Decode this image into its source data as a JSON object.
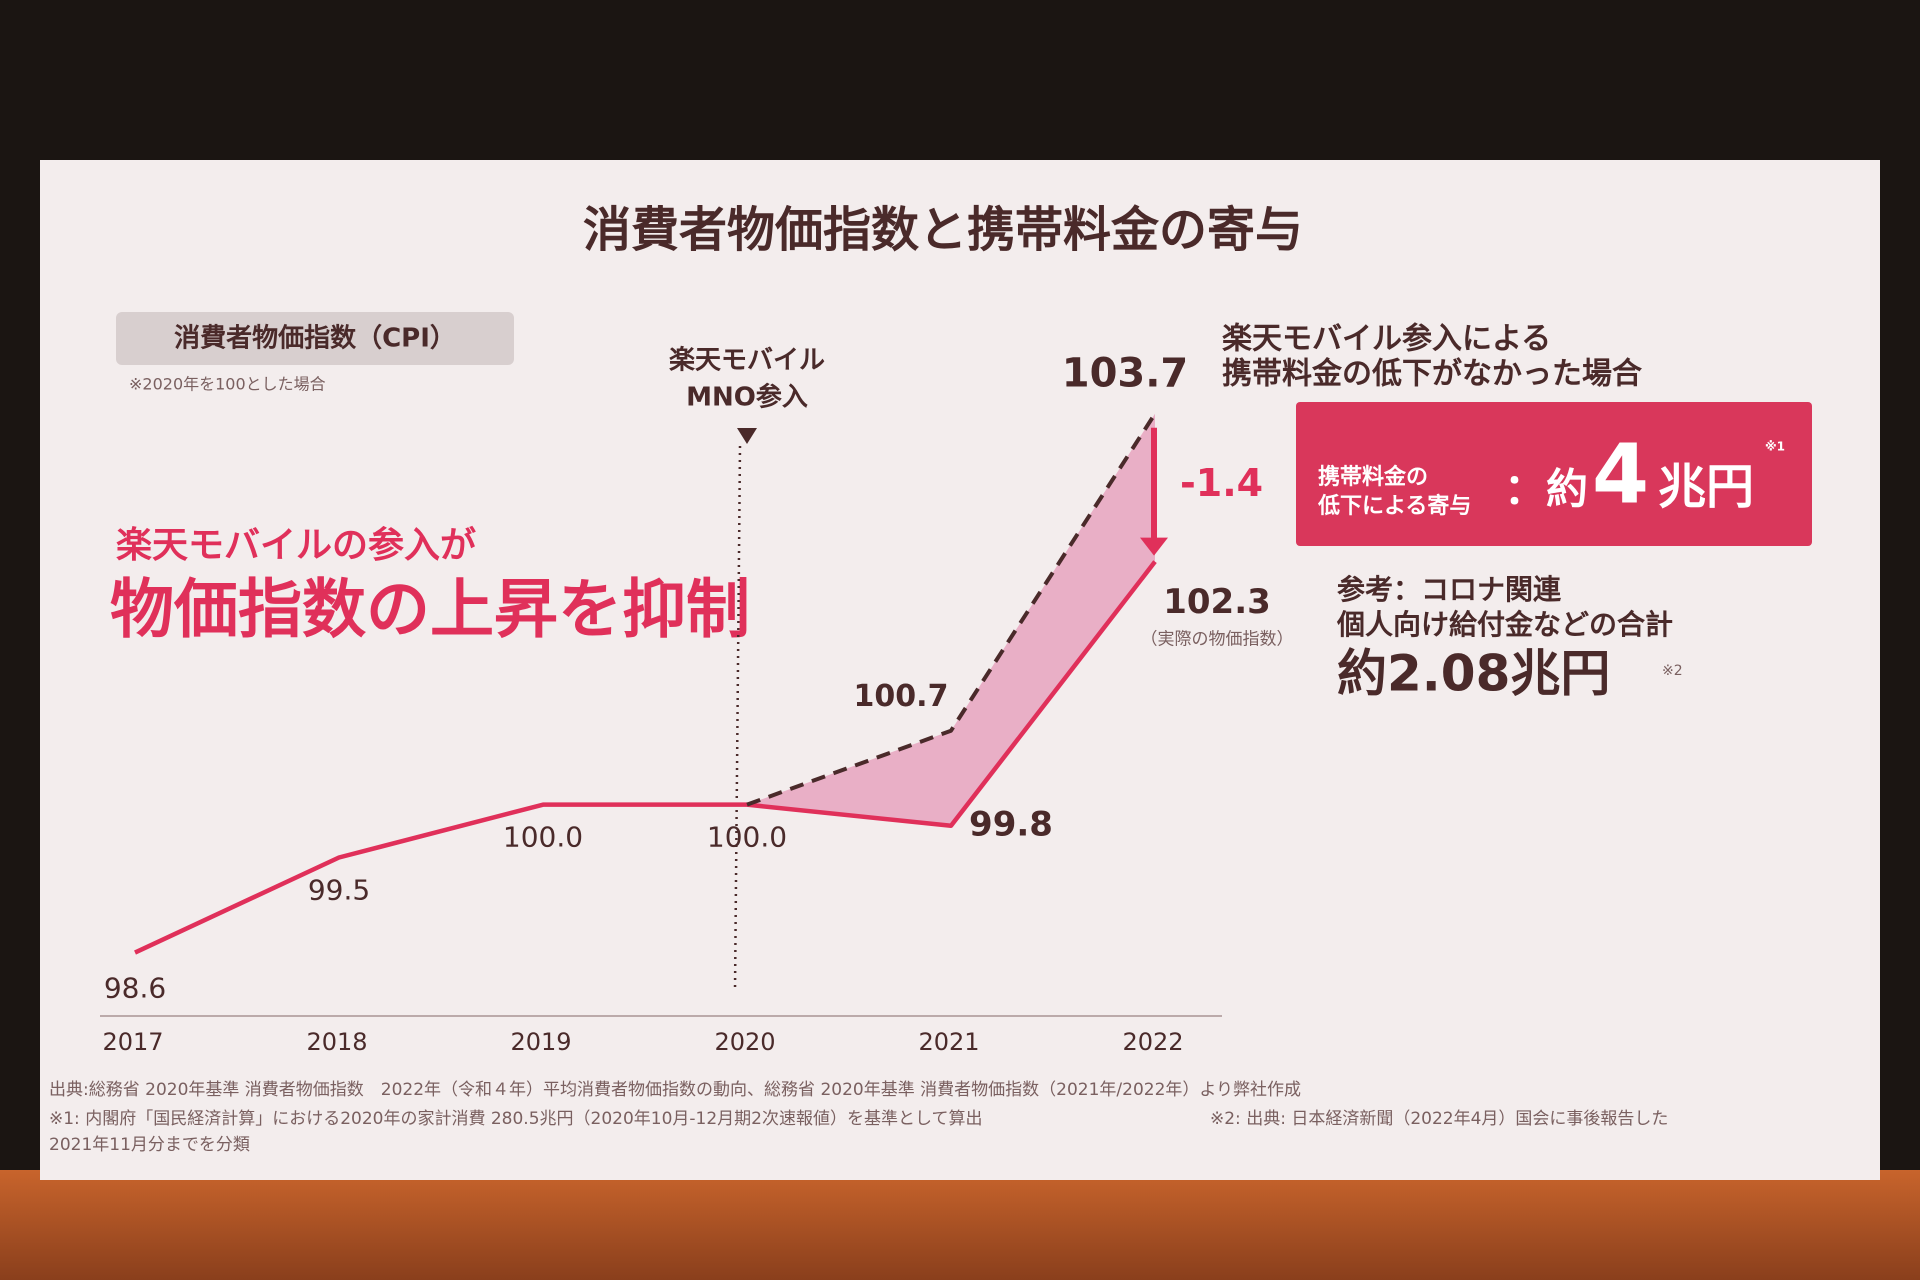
{
  "chart_data": {
    "type": "line",
    "title": "消費者物価指数と携帯料金の寄与",
    "subtitle": "消費者物価指数（CPI）",
    "note": "※2020年を100とした場合",
    "categories": [
      "2017",
      "2018",
      "2019",
      "2020",
      "2021",
      "2022"
    ],
    "series": [
      {
        "color": "#e0305a",
        "dash": false,
        "values": [
          98.6,
          99.5,
          100.0,
          100.0,
          99.8,
          102.3
        ],
        "value_labels": [
          "98.6",
          "99.5",
          "100.0",
          "100.0",
          "99.8",
          "102.3"
        ]
      },
      {
        "color": "#4a2a2a",
        "dash": true,
        "values": [
          null,
          null,
          null,
          100.0,
          100.7,
          103.7
        ]
      }
    ],
    "ylim": [
      98,
      104
    ],
    "actual_note": "（実際の物価指数）",
    "difference": -1.4,
    "event_label": [
      "楽天モバイル",
      "MNO参入"
    ],
    "headline": [
      "楽天モバイルの参入が",
      "物価指数の上昇を抑制"
    ],
    "scenario_label": [
      "楽天モバイル参入による",
      "携帯料金の低下がなかった場合"
    ],
    "contribution": {
      "label": [
        "携帯料金の",
        "低下による寄与"
      ],
      "prefix": "：約",
      "number": "4",
      "unit": "兆円",
      "mark": "※1"
    },
    "reference": {
      "lines": [
        "参考：コロナ関連",
        "個人向け給付金などの合計"
      ],
      "amount": "約2.08兆円",
      "mark": "※2"
    },
    "footnotes": [
      "出典:総務省 2020年基準 消費者物価指数　2022年（令和４年）平均消費者物価指数の動向、総務省 2020年基準 消費者物価指数（2021年/2022年）より弊社作成",
      "※1: 内閣府「国民経済計算」における2020年の家計消費 280.5兆円（2020年10月-12月期2次速報値）を基準として算出",
      "※2: 出典: 日本経済新聞（2022年4月）国会に事後報告した",
      "2021年11月分までを分類"
    ]
  }
}
